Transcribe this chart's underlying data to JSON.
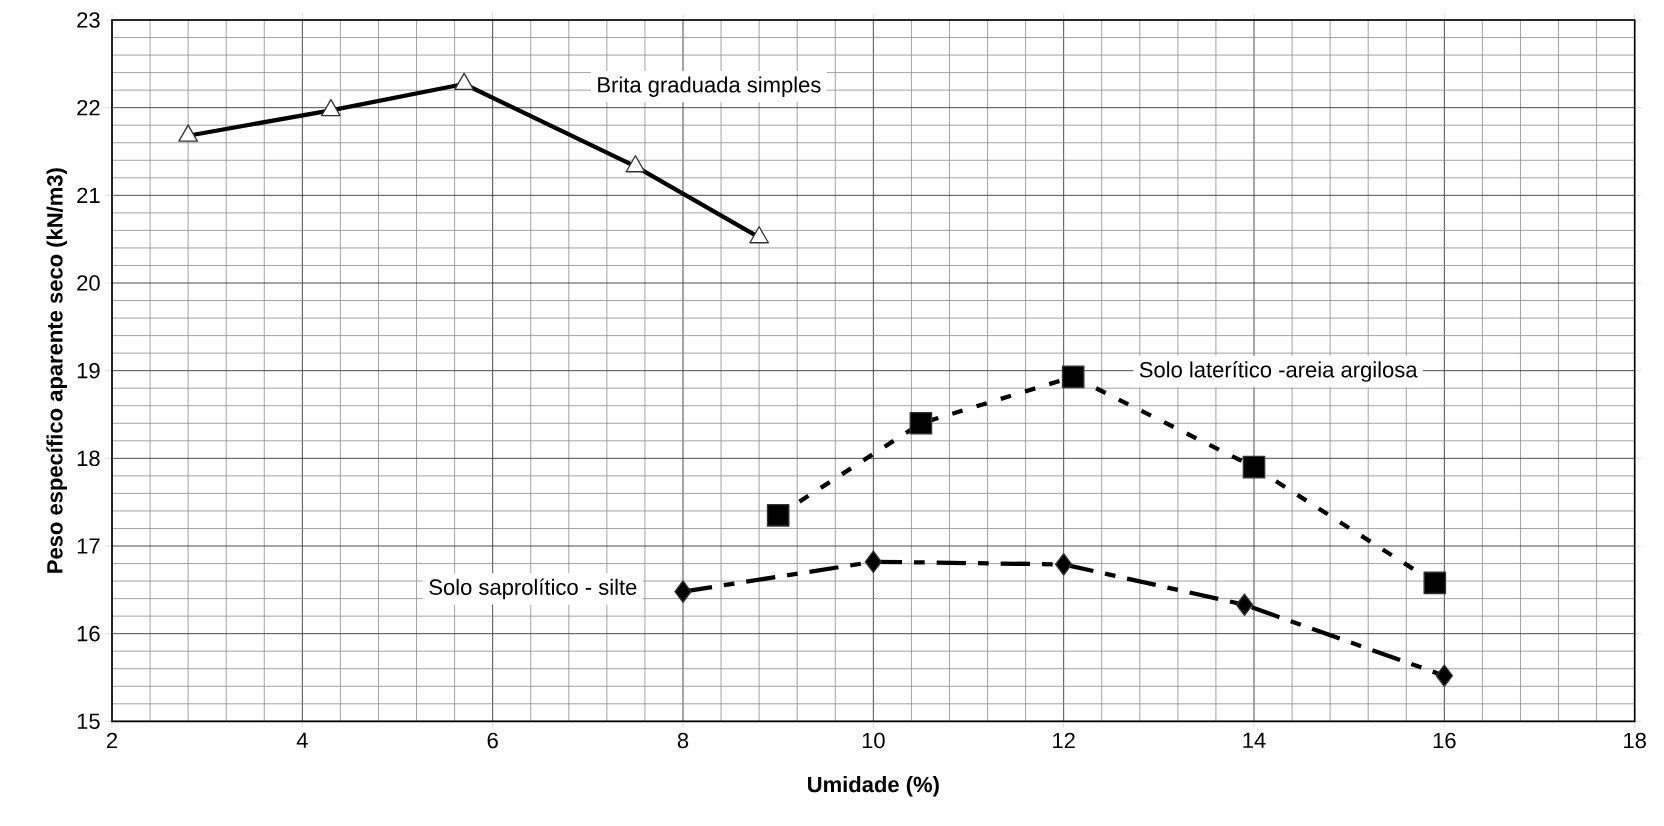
{
  "chart_data": {
    "type": "line",
    "xlabel": "Umidade (%)",
    "ylabel": "Peso específico aparente seco (kN/m3)",
    "xlim": [
      2,
      18
    ],
    "xticks": [
      2,
      4,
      6,
      8,
      10,
      12,
      14,
      16,
      18
    ],
    "ylim": [
      15,
      23
    ],
    "yticks": [
      15,
      16,
      17,
      18,
      19,
      20,
      21,
      22,
      23
    ],
    "grid": true,
    "series": [
      {
        "name": "Brita graduada simples",
        "color": "#000000",
        "marker": "triangle",
        "line_style": "solid",
        "x": [
          2.8,
          4.3,
          5.7,
          7.5,
          8.8
        ],
        "values": [
          21.68,
          21.97,
          22.27,
          21.33,
          20.52
        ]
      },
      {
        "name": "Solo laterítico -areia argilosa",
        "color": "#000000",
        "marker": "square",
        "line_style": "dotted",
        "x": [
          9.0,
          10.5,
          12.1,
          14.0,
          15.9
        ],
        "values": [
          17.35,
          18.4,
          18.93,
          17.9,
          16.58
        ]
      },
      {
        "name": "Solo saprolítico - silte",
        "color": "#000000",
        "marker": "diamond",
        "line_style": "dashed",
        "x": [
          8.0,
          10.0,
          12.0,
          13.9,
          16.0
        ],
        "values": [
          16.48,
          16.82,
          16.79,
          16.33,
          15.52
        ]
      }
    ]
  }
}
